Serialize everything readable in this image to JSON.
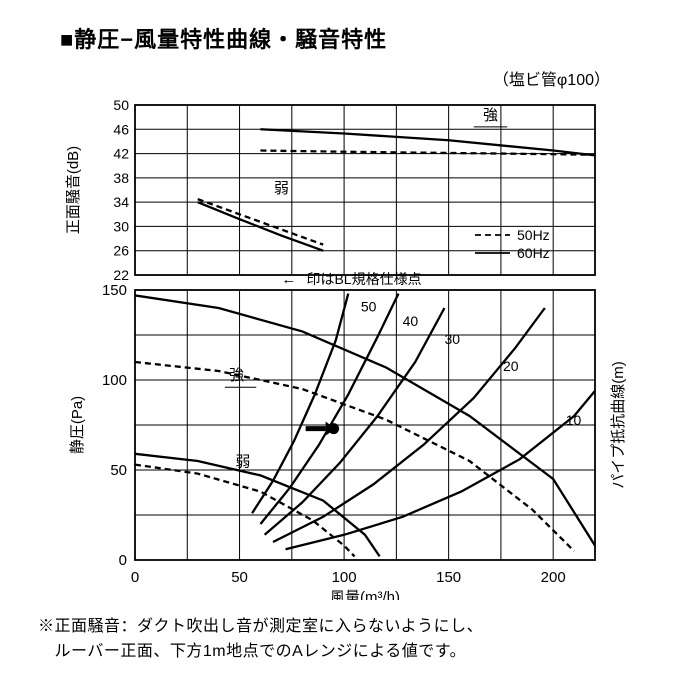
{
  "title": "■静圧−風量特性曲線・騒音特性",
  "subtitle": "（塩ビ管φ100）",
  "footnote_line1": "※正面騒音：ダクト吹出し音が測定室に入らないようにし、",
  "footnote_line2": "　ルーバー正面、下方1m地点でのAレンジによる値です。",
  "grid_color": "#000000",
  "bg_color": "#ffffff",
  "dash_pattern": "6,4",
  "top_chart": {
    "title_y": "正面騒音(dB)",
    "ylim": [
      22,
      50
    ],
    "xlim": [
      0,
      220
    ],
    "yticks": [
      22,
      26,
      30,
      34,
      38,
      42,
      46,
      50
    ],
    "x_major": [
      0,
      50,
      100,
      150,
      200
    ],
    "x_minor": [
      25,
      75,
      125,
      175
    ],
    "legend": {
      "items": [
        {
          "label": "50Hz",
          "dash": true
        },
        {
          "label": "60Hz",
          "dash": false
        }
      ]
    },
    "strong_label": "強",
    "weak_label": "弱",
    "series": {
      "strong_60": {
        "dash": false,
        "pts": [
          [
            60,
            46
          ],
          [
            100,
            45.3
          ],
          [
            150,
            44.2
          ],
          [
            200,
            42.5
          ],
          [
            220,
            41.7
          ]
        ]
      },
      "strong_50": {
        "dash": true,
        "pts": [
          [
            60,
            42.5
          ],
          [
            100,
            42.3
          ],
          [
            150,
            42.1
          ],
          [
            200,
            41.9
          ],
          [
            220,
            41.8
          ]
        ]
      },
      "weak_60": {
        "dash": false,
        "pts": [
          [
            30,
            34
          ],
          [
            50,
            31.2
          ],
          [
            70,
            28.5
          ],
          [
            90,
            26
          ]
        ]
      },
      "weak_50": {
        "dash": true,
        "pts": [
          [
            30,
            34.5
          ],
          [
            50,
            32
          ],
          [
            70,
            29.5
          ],
          [
            90,
            27
          ]
        ]
      }
    }
  },
  "bottom_chart": {
    "title_y_left": "静圧(Pa)",
    "title_y_right": "パイプ抵抗曲線(m)",
    "title_x": "風量(m³/h)",
    "ylim": [
      0,
      150
    ],
    "xlim": [
      0,
      220
    ],
    "yticks": [
      0,
      50,
      100,
      150
    ],
    "xticks": [
      0,
      50,
      100,
      150,
      200
    ],
    "x_minor": [
      25,
      75,
      125,
      175
    ],
    "y_minor": [
      25,
      75,
      125
    ],
    "strong_label": "強",
    "weak_label": "弱",
    "marker_label": "印はBL規格仕様点",
    "marker_pt": [
      95,
      73
    ],
    "fan_curves": {
      "strong_60": {
        "dash": false,
        "pts": [
          [
            0,
            147
          ],
          [
            40,
            140
          ],
          [
            80,
            127
          ],
          [
            120,
            107
          ],
          [
            160,
            80
          ],
          [
            200,
            45
          ],
          [
            220,
            8
          ]
        ]
      },
      "strong_50": {
        "dash": true,
        "pts": [
          [
            0,
            110
          ],
          [
            40,
            105
          ],
          [
            80,
            95
          ],
          [
            120,
            78
          ],
          [
            160,
            55
          ],
          [
            190,
            28
          ],
          [
            210,
            5
          ]
        ]
      },
      "weak_60": {
        "dash": false,
        "pts": [
          [
            0,
            59
          ],
          [
            30,
            55
          ],
          [
            60,
            47
          ],
          [
            90,
            33
          ],
          [
            110,
            14
          ],
          [
            117,
            2
          ]
        ]
      },
      "weak_50": {
        "dash": true,
        "pts": [
          [
            0,
            53
          ],
          [
            30,
            48
          ],
          [
            60,
            38
          ],
          [
            85,
            22
          ],
          [
            100,
            8
          ],
          [
            105,
            2
          ]
        ]
      }
    },
    "pipe_curves": [
      {
        "label": "50",
        "label_pt": [
          108,
          138
        ],
        "pts": [
          [
            56,
            26
          ],
          [
            66,
            44
          ],
          [
            76,
            66
          ],
          [
            86,
            92
          ],
          [
            96,
            122
          ],
          [
            102,
            148
          ]
        ]
      },
      {
        "label": "40",
        "label_pt": [
          128,
          130
        ],
        "pts": [
          [
            60,
            20
          ],
          [
            74,
            40
          ],
          [
            88,
            64
          ],
          [
            102,
            92
          ],
          [
            116,
            124
          ],
          [
            126,
            148
          ]
        ]
      },
      {
        "label": "30",
        "label_pt": [
          148,
          120
        ],
        "pts": [
          [
            62,
            14
          ],
          [
            80,
            32
          ],
          [
            98,
            54
          ],
          [
            116,
            80
          ],
          [
            134,
            110
          ],
          [
            148,
            140
          ]
        ]
      },
      {
        "label": "20",
        "label_pt": [
          176,
          105
        ],
        "pts": [
          [
            66,
            10
          ],
          [
            90,
            24
          ],
          [
            114,
            42
          ],
          [
            138,
            64
          ],
          [
            162,
            90
          ],
          [
            182,
            118
          ],
          [
            196,
            140
          ]
        ]
      },
      {
        "label": "10",
        "label_pt": [
          206,
          75
        ],
        "pts": [
          [
            72,
            6
          ],
          [
            100,
            14
          ],
          [
            128,
            24
          ],
          [
            156,
            38
          ],
          [
            184,
            56
          ],
          [
            210,
            80
          ],
          [
            220,
            94
          ]
        ]
      }
    ]
  }
}
